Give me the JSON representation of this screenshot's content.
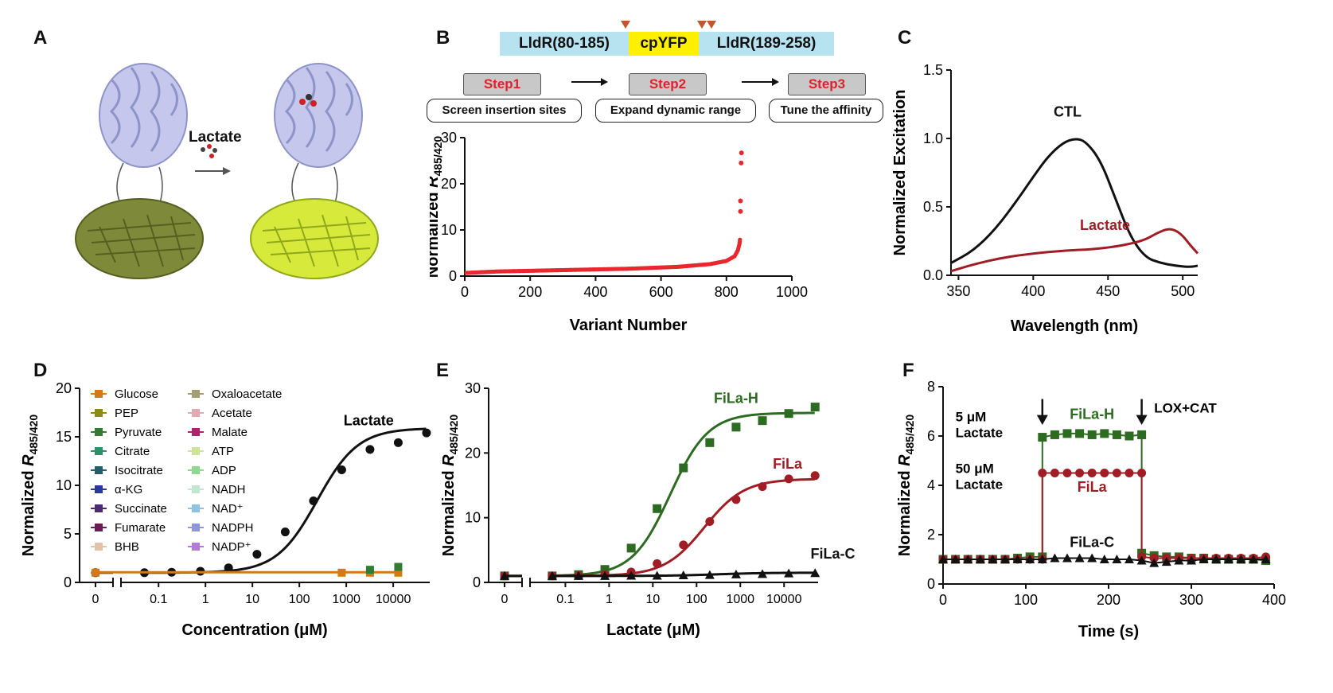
{
  "panels": {
    "A": {
      "label": "A",
      "arrow_text": "Lactate"
    },
    "B": {
      "label": "B",
      "construct": [
        "LldR(80-185)",
        "cpYFP",
        "LldR(189-258)"
      ],
      "steps": [
        {
          "step": "Step1",
          "desc": "Screen insertion sites"
        },
        {
          "step": "Step2",
          "desc": "Expand dynamic range"
        },
        {
          "step": "Step3",
          "desc": "Tune the affinity"
        }
      ]
    },
    "C": {
      "label": "C"
    },
    "D": {
      "label": "D"
    },
    "E": {
      "label": "E"
    },
    "F": {
      "label": "F"
    }
  },
  "colors": {
    "red": "#e8282e",
    "green": "#2e6b22",
    "darkred": "#a11d25",
    "black": "#111111",
    "cyan": "#b7e3f0",
    "yellow": "#ffef00",
    "orange": "#d37a17"
  },
  "chart_data": [
    {
      "id": "B",
      "type": "scatter",
      "xlabel": "Variant Number",
      "ylabel": "Normalized R485/420",
      "xlim": [
        0,
        1000
      ],
      "ylim": [
        0,
        30
      ],
      "xticks": [
        0,
        200,
        400,
        600,
        800,
        1000
      ],
      "yticks": [
        0,
        10,
        20,
        30
      ],
      "series": [
        {
          "color": "#e8282e",
          "trend": [
            [
              5,
              0.7
            ],
            [
              100,
              1.0
            ],
            [
              300,
              1.3
            ],
            [
              500,
              1.6
            ],
            [
              650,
              2.0
            ],
            [
              750,
              2.6
            ],
            [
              800,
              3.3
            ],
            [
              825,
              4.3
            ],
            [
              835,
              5.6
            ],
            [
              840,
              7.0
            ],
            [
              842,
              8.2
            ]
          ],
          "outliers": [
            [
              843,
              14.0
            ],
            [
              843,
              16.3
            ],
            [
              845,
              24.5
            ],
            [
              846,
              26.7
            ]
          ]
        }
      ]
    },
    {
      "id": "C",
      "type": "line",
      "xlabel": "Wavelength (nm)",
      "ylabel": "Normalized Excitation",
      "xlim": [
        345,
        510
      ],
      "ylim": [
        0,
        1.5
      ],
      "xticks": [
        350,
        400,
        450,
        500
      ],
      "yticks": [
        0.0,
        0.5,
        1.0,
        1.5
      ],
      "series": [
        {
          "name": "CTL",
          "color": "#111111",
          "x": [
            345,
            360,
            375,
            390,
            400,
            410,
            420,
            428,
            435,
            445,
            455,
            465,
            475,
            485,
            495,
            505,
            510
          ],
          "y": [
            0.09,
            0.18,
            0.34,
            0.56,
            0.72,
            0.87,
            0.97,
            1.0,
            0.98,
            0.84,
            0.56,
            0.28,
            0.13,
            0.09,
            0.07,
            0.06,
            0.07
          ]
        },
        {
          "name": "Lactate",
          "color": "#a11d25",
          "x": [
            345,
            360,
            380,
            400,
            420,
            440,
            455,
            465,
            475,
            483,
            490,
            495,
            500,
            505,
            510
          ],
          "y": [
            0.03,
            0.08,
            0.13,
            0.16,
            0.18,
            0.19,
            0.21,
            0.23,
            0.26,
            0.31,
            0.34,
            0.33,
            0.29,
            0.22,
            0.16
          ]
        }
      ]
    },
    {
      "id": "D",
      "type": "line",
      "xlabel": "Concentration (μM)",
      "ylabel": "Normalized R485/420",
      "xscale": "log",
      "ylim": [
        0,
        20
      ],
      "xticks": [
        "0",
        "0.1",
        "1",
        "10",
        "100",
        "1000",
        "10000"
      ],
      "yticks": [
        0,
        5,
        10,
        15,
        20
      ],
      "legend": [
        "Glucose",
        "Oxaloacetate",
        "PEP",
        "Acetate",
        "Pyruvate",
        "Malate",
        "Citrate",
        "ATP",
        "Isocitrate",
        "ADP",
        "α-KG",
        "NADH",
        "Succinate",
        "NAD+",
        "Fumarate",
        "NADPH",
        "BHB",
        "NADP+"
      ],
      "legend_colors": [
        "#d37a17",
        "#a49f73",
        "#8b8b18",
        "#e2a9b3",
        "#2e7d32",
        "#b0216b",
        "#2f8f6b",
        "#cfe39a",
        "#1f5f6b",
        "#8fd88f",
        "#2b3a9a",
        "#bfe8cf",
        "#4b2a7a",
        "#8fc1e3",
        "#6e1a57",
        "#8d96d9",
        "#e2c3a8",
        "#b57ad8"
      ],
      "series": [
        {
          "name": "Lactate",
          "color": "#111111",
          "x": [
            0,
            0.05,
            0.19,
            0.78,
            3.1,
            12.5,
            50,
            200,
            800,
            3200,
            12800,
            51200
          ],
          "y": [
            1.0,
            1.0,
            1.05,
            1.15,
            1.5,
            2.9,
            5.2,
            8.4,
            11.6,
            13.7,
            14.4,
            15.4
          ]
        },
        {
          "name": "Glucose",
          "color": "#d37a17",
          "x": [
            0,
            800,
            3200,
            12800
          ],
          "y": [
            1.0,
            1.0,
            1.0,
            1.0
          ]
        },
        {
          "name": "Pyruvate",
          "color": "#2e7d32",
          "x": [
            3200,
            12800
          ],
          "y": [
            1.3,
            1.6
          ]
        }
      ]
    },
    {
      "id": "E",
      "type": "line",
      "xlabel": "Lactate (μM)",
      "ylabel": "Normalized R485/420",
      "xscale": "log",
      "ylim": [
        0,
        30
      ],
      "xticks": [
        "0",
        "0.1",
        "1",
        "10",
        "100",
        "1000",
        "10000"
      ],
      "yticks": [
        0,
        10,
        20,
        30
      ],
      "series": [
        {
          "name": "FiLa-H",
          "color": "#2e6b22",
          "x": [
            0,
            0.05,
            0.2,
            0.8,
            3.2,
            12.5,
            50,
            200,
            800,
            3200,
            12800,
            51200
          ],
          "y": [
            1.0,
            1.0,
            1.2,
            2.0,
            5.3,
            11.4,
            17.7,
            21.6,
            24.0,
            25.0,
            26.1,
            27.1
          ]
        },
        {
          "name": "FiLa",
          "color": "#a11d25",
          "x": [
            0,
            0.05,
            0.2,
            0.8,
            3.2,
            12.5,
            50,
            200,
            800,
            3200,
            12800,
            51200
          ],
          "y": [
            1.0,
            1.0,
            1.05,
            1.2,
            1.6,
            2.9,
            5.8,
            9.4,
            12.8,
            14.8,
            16.0,
            16.5
          ]
        },
        {
          "name": "FiLa-C",
          "color": "#111111",
          "x": [
            0,
            0.05,
            0.2,
            0.8,
            3.2,
            12.5,
            50,
            200,
            800,
            3200,
            12800,
            51200
          ],
          "y": [
            1.0,
            1.0,
            1.0,
            1.0,
            1.05,
            1.05,
            1.1,
            1.15,
            1.25,
            1.3,
            1.4,
            1.45
          ]
        }
      ]
    },
    {
      "id": "F",
      "type": "line",
      "xlabel": "Time (s)",
      "ylabel": "Normalized R485/420",
      "xlim": [
        0,
        400
      ],
      "ylim": [
        0,
        8
      ],
      "xticks": [
        0,
        100,
        200,
        300,
        400
      ],
      "yticks": [
        0,
        2,
        4,
        6,
        8
      ],
      "annotations": [
        "5 μM Lactate",
        "50 μM Lactate",
        "LOX+CAT"
      ],
      "series": [
        {
          "name": "FiLa-H",
          "color": "#2e6b22",
          "x": [
            0,
            15,
            30,
            45,
            60,
            75,
            90,
            105,
            120,
            120,
            135,
            150,
            165,
            180,
            195,
            210,
            225,
            240,
            240,
            255,
            270,
            285,
            300,
            315,
            330,
            345,
            360,
            375,
            390
          ],
          "y": [
            1.0,
            1.0,
            1.0,
            1.0,
            1.0,
            1.0,
            1.05,
            1.1,
            1.1,
            5.95,
            6.05,
            6.1,
            6.1,
            6.05,
            6.1,
            6.05,
            6.0,
            6.05,
            1.25,
            1.15,
            1.1,
            1.1,
            1.05,
            1.05,
            1.0,
            1.0,
            1.0,
            1.0,
            0.95
          ]
        },
        {
          "name": "FiLa",
          "color": "#a11d25",
          "x": [
            0,
            15,
            30,
            45,
            60,
            75,
            90,
            105,
            120,
            120,
            135,
            150,
            165,
            180,
            195,
            210,
            225,
            240,
            240,
            255,
            270,
            285,
            300,
            315,
            330,
            345,
            360,
            375,
            390
          ],
          "y": [
            1.0,
            1.0,
            1.0,
            1.0,
            1.0,
            1.0,
            1.0,
            1.0,
            1.0,
            4.5,
            4.5,
            4.5,
            4.5,
            4.5,
            4.5,
            4.5,
            4.5,
            4.5,
            1.1,
            1.05,
            1.05,
            1.05,
            1.05,
            1.05,
            1.05,
            1.05,
            1.05,
            1.05,
            1.1
          ]
        },
        {
          "name": "FiLa-C",
          "color": "#111111",
          "x": [
            0,
            15,
            30,
            45,
            60,
            75,
            90,
            105,
            120,
            135,
            150,
            165,
            180,
            195,
            210,
            225,
            240,
            255,
            270,
            285,
            300,
            315,
            330,
            345,
            360,
            375,
            390
          ],
          "y": [
            1.0,
            1.0,
            1.0,
            1.0,
            1.0,
            1.0,
            1.0,
            1.0,
            1.0,
            1.05,
            1.05,
            1.05,
            1.05,
            1.0,
            1.0,
            1.0,
            0.95,
            0.85,
            0.9,
            0.95,
            0.95,
            1.0,
            1.0,
            1.0,
            1.0,
            1.0,
            1.0
          ]
        }
      ]
    }
  ]
}
